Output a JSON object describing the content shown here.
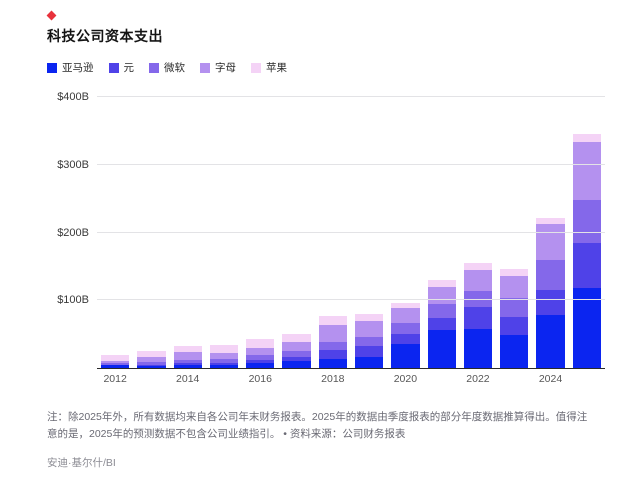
{
  "header": {
    "title": "科技公司资本支出"
  },
  "chart_data": {
    "type": "bar",
    "stacked": true,
    "title": "科技公司资本支出",
    "categories": [
      "2012",
      "2013",
      "2014",
      "2015",
      "2016",
      "2017",
      "2018",
      "2019",
      "2020",
      "2021",
      "2022",
      "2023",
      "2024",
      "2025"
    ],
    "x_tick_labels": [
      "2012",
      "2014",
      "2016",
      "2018",
      "2020",
      "2022",
      "2024"
    ],
    "series": [
      {
        "name": "亚马逊",
        "color": "#0b25f0",
        "values": [
          3.8,
          3.4,
          4.9,
          4.6,
          6.7,
          10.1,
          13.4,
          16.9,
          35.0,
          55.4,
          58.3,
          48.4,
          78.0,
          118.0
        ]
      },
      {
        "name": "元",
        "color": "#4f42e8",
        "values": [
          1.2,
          1.4,
          1.8,
          2.5,
          4.5,
          6.7,
          13.9,
          15.1,
          15.7,
          18.6,
          31.4,
          27.1,
          37.3,
          66.0
        ]
      },
      {
        "name": "微软",
        "color": "#8468ea",
        "values": [
          2.3,
          4.3,
          5.3,
          5.9,
          8.3,
          8.1,
          11.6,
          13.9,
          15.4,
          20.6,
          23.9,
          28.1,
          44.5,
          64.0
        ]
      },
      {
        "name": "字母",
        "color": "#b491ef",
        "values": [
          3.3,
          7.4,
          11.0,
          9.9,
          10.2,
          13.2,
          25.1,
          23.5,
          22.3,
          24.6,
          31.5,
          32.3,
          52.5,
          85.0
        ]
      },
      {
        "name": "苹果",
        "color": "#f4d3f6",
        "values": [
          8.3,
          8.2,
          9.6,
          11.2,
          12.7,
          12.5,
          13.3,
          10.5,
          7.3,
          11.1,
          10.7,
          11.0,
          9.4,
          12.0
        ]
      }
    ],
    "y_ticks": [
      {
        "value": 100,
        "label": "$100B"
      },
      {
        "value": 200,
        "label": "$200B"
      },
      {
        "value": 300,
        "label": "$300B"
      },
      {
        "value": 400,
        "label": "$400B"
      }
    ],
    "ylim": [
      0,
      400
    ],
    "legend_position": "top-left",
    "grid": true
  },
  "footer": {
    "note": "注：除2025年外，所有数据均来自各公司年末财务报表。2025年的数据由季度报表的部分年度数据推算得出。值得注意的是，2025年的预测数据不包含公司业绩指引。 • 资料来源：公司财务报表",
    "credit": "安迪·基尔什/BI"
  }
}
